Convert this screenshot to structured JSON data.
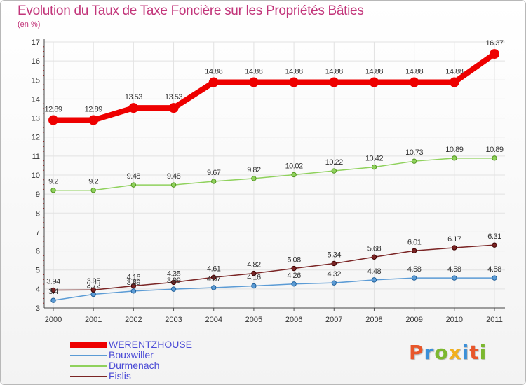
{
  "title": "Evolution du Taux de Taxe Foncière sur les Propriétés Bâties",
  "unit_label": "(en %)",
  "logo": {
    "text": "Proxiti",
    "letter_colors": [
      "#e8562a",
      "#3a8fd8",
      "#7cb82f",
      "#f2b01e",
      "#3a8fd8",
      "#e8562a",
      "#7cb82f"
    ]
  },
  "chart_data": {
    "type": "line",
    "title": "Evolution du Taux de Taxe Foncière sur les Propriétés Bâties",
    "ylabel": "(en %)",
    "xlabel": "",
    "categories": [
      "2000",
      "2001",
      "2002",
      "2003",
      "2004",
      "2005",
      "2006",
      "2007",
      "2008",
      "2009",
      "2010",
      "2011"
    ],
    "ylim": [
      3,
      17
    ],
    "yticks": [
      "3",
      "4",
      "5",
      "6",
      "7",
      "8",
      "9",
      "10",
      "11",
      "12",
      "13",
      "14",
      "15",
      "16",
      "17"
    ],
    "grid": true,
    "legend_position": "bottom-left",
    "series": [
      {
        "name": "WERENTZHOUSE",
        "color": "#ee0000",
        "emphasis": true,
        "values": [
          12.89,
          12.89,
          13.53,
          13.53,
          14.88,
          14.88,
          14.88,
          14.88,
          14.88,
          14.88,
          14.88,
          16.37
        ],
        "labels": [
          "12.89",
          "12.89",
          "13.53",
          "13.53",
          "14.88",
          "14.88",
          "14.88",
          "14.88",
          "14.88",
          "14.88",
          "14.88",
          "16.37"
        ]
      },
      {
        "name": "Bouxwiller",
        "color": "#5b9bd5",
        "emphasis": false,
        "values": [
          3.4,
          3.72,
          3.89,
          3.99,
          4.07,
          4.16,
          4.26,
          4.32,
          4.48,
          4.58,
          4.58,
          4.58
        ],
        "labels": [
          "3.4",
          "3.72",
          "3.89",
          "3.99",
          "4.07",
          "4.16",
          "4.26",
          "4.32",
          "4.48",
          "4.58",
          "4.58",
          "4.58"
        ]
      },
      {
        "name": "Durmenach",
        "color": "#8fd15c",
        "emphasis": false,
        "values": [
          9.2,
          9.2,
          9.48,
          9.48,
          9.67,
          9.82,
          10.02,
          10.22,
          10.42,
          10.73,
          10.89,
          10.89
        ],
        "labels": [
          "9.2",
          "9.2",
          "9.48",
          "9.48",
          "9.67",
          "9.82",
          "10.02",
          "10.22",
          "10.42",
          "10.73",
          "10.89",
          "10.89"
        ]
      },
      {
        "name": "Fislis",
        "color": "#7a2424",
        "emphasis": false,
        "values": [
          3.94,
          3.95,
          4.16,
          4.35,
          4.61,
          4.82,
          5.08,
          5.34,
          5.68,
          6.01,
          6.17,
          6.31
        ],
        "labels": [
          "3.94",
          "3.95",
          "4.16",
          "4.35",
          "4.61",
          "4.82",
          "5.08",
          "5.34",
          "5.68",
          "6.01",
          "6.17",
          "6.31"
        ]
      }
    ]
  }
}
